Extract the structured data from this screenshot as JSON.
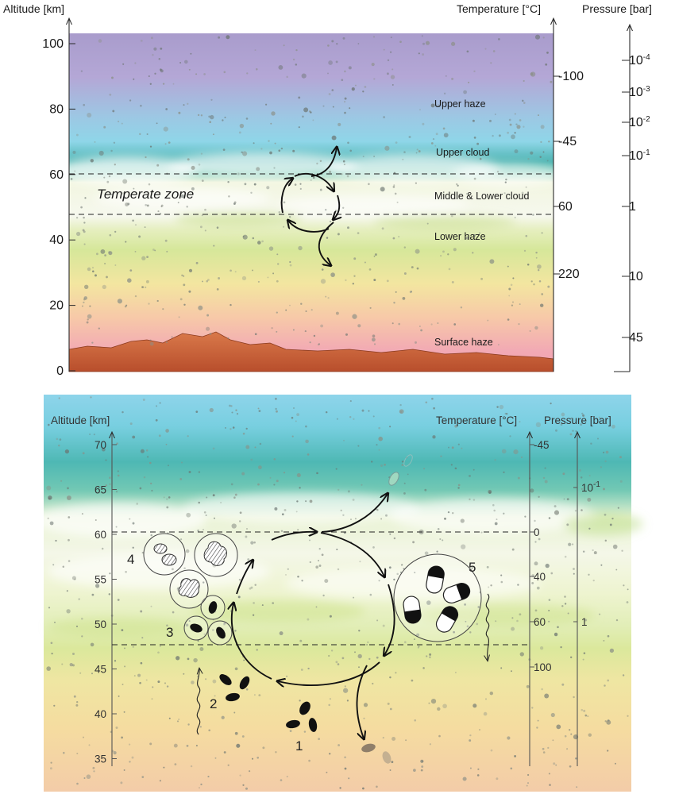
{
  "top": {
    "altitude_title": "Altitude [km]",
    "temperature_title": "Temperature [°C]",
    "pressure_title": "Pressure [bar]",
    "altitude_ticks": [
      "100",
      "80",
      "60",
      "40",
      "20",
      "0"
    ],
    "temperature_ticks": [
      "-100",
      "-45",
      "60",
      "220"
    ],
    "pressure_ticks": [
      {
        "base": "10",
        "exp": "-4"
      },
      {
        "base": "10",
        "exp": "-3"
      },
      {
        "base": "10",
        "exp": "-2"
      },
      {
        "base": "10",
        "exp": "-1"
      },
      {
        "base": "1",
        "exp": ""
      },
      {
        "base": "10",
        "exp": ""
      },
      {
        "base": "45",
        "exp": ""
      }
    ],
    "layers": [
      "Upper haze",
      "Upper cloud",
      "Middle & Lower cloud",
      "Lower haze",
      "Surface haze"
    ],
    "zone_label": "Temperate zone"
  },
  "bottom": {
    "altitude_title": "Altitude [km]",
    "temperature_title": "Temperature [°C]",
    "pressure_title": "Pressure [bar]",
    "altitude_ticks": [
      "70",
      "65",
      "60",
      "55",
      "50",
      "45",
      "40",
      "35"
    ],
    "temperature_ticks": [
      "-45",
      "0",
      "40",
      "60",
      "100"
    ],
    "pressure_ticks": [
      {
        "base": "10",
        "exp": "-1"
      },
      {
        "base": "1",
        "exp": ""
      }
    ],
    "stage_labels": [
      "1",
      "2",
      "3",
      "4",
      "5"
    ]
  },
  "colors": {
    "upper_sky": "#a99ccc",
    "haze_blue": "#8fd6e8",
    "cloud_teal": "#4bb3b0",
    "cloud_white": "#f6f8ee",
    "lower_haze": "#d9e89a",
    "warm_yellow": "#f3e6a0",
    "surface_pink": "#f0a0b0",
    "rock": "#c8623a"
  }
}
